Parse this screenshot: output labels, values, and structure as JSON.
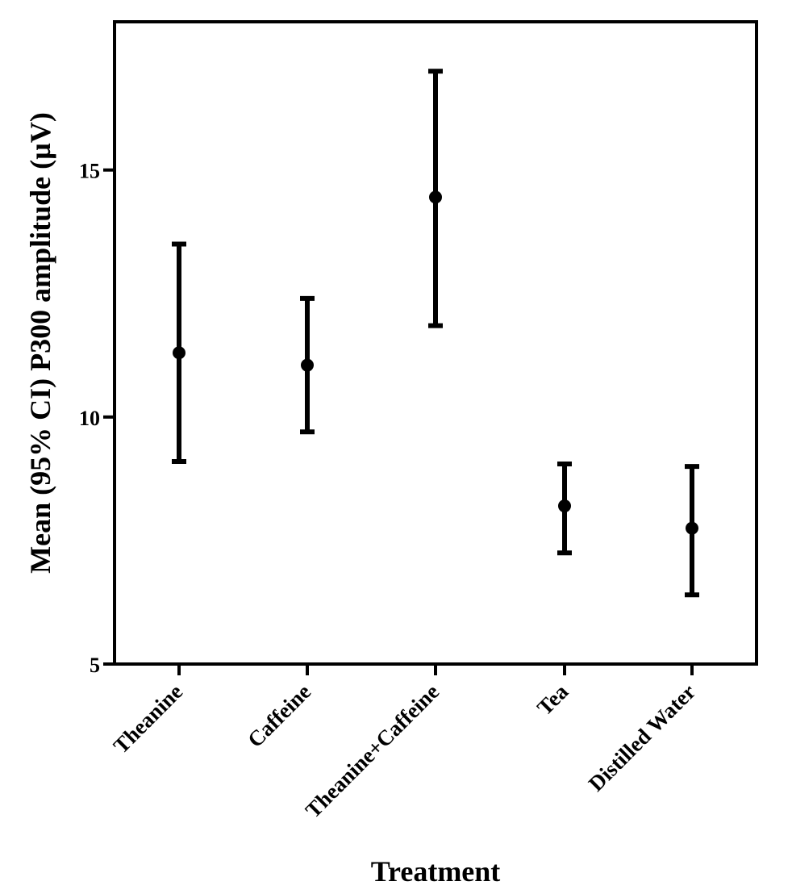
{
  "chart_data": {
    "type": "scatter",
    "subtype": "mean-with-error-bars",
    "xlabel": "Treatment",
    "ylabel": "Mean (95% CI) P300 amplitude (µV)",
    "ylim": [
      5,
      18
    ],
    "yticks": [
      5,
      10,
      15
    ],
    "grid": false,
    "categories": [
      "Theanine",
      "Caffeine",
      "Theanine+Caffeine",
      "Tea",
      "Distilled Water"
    ],
    "series": [
      {
        "values": [
          11.3,
          11.05,
          14.45,
          8.2,
          7.75
        ],
        "ci_lower": [
          9.1,
          9.7,
          11.85,
          7.25,
          6.4
        ],
        "ci_upper": [
          13.5,
          12.4,
          17.0,
          9.05,
          9.0
        ]
      }
    ],
    "colors": {
      "marker": "#000000",
      "axis": "#000000",
      "background": "#ffffff"
    }
  }
}
